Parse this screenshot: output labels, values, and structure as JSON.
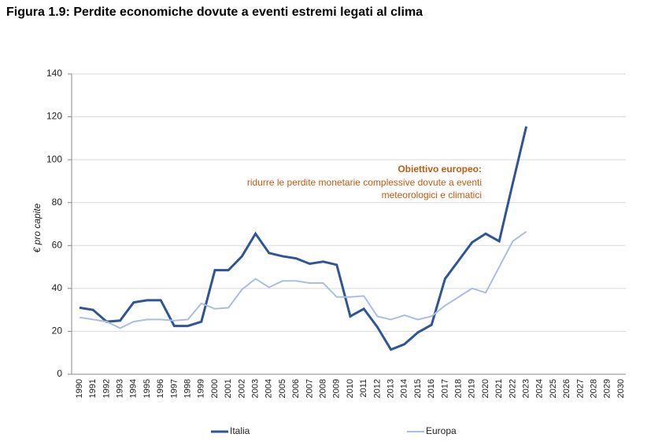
{
  "chart_data": {
    "type": "line",
    "title": "Figura 1.9: Perdite economiche dovute a eventi estremi legati al clima",
    "y_label": "€ pro capite",
    "categories": [
      "1990",
      "1991",
      "1992",
      "1993",
      "1994",
      "1995",
      "1996",
      "1997",
      "1998",
      "1999",
      "2000",
      "2001",
      "2002",
      "2003",
      "2004",
      "2005",
      "2006",
      "2007",
      "2008",
      "2009",
      "2010",
      "2011",
      "2012",
      "2013",
      "2014",
      "2015",
      "2016",
      "2017",
      "2018",
      "2019",
      "2020",
      "2021",
      "2022",
      "2023",
      "2024",
      "2025",
      "2026",
      "2027",
      "2028",
      "2029",
      "2030"
    ],
    "series": [
      {
        "name": "Italia",
        "color": "#2f5597",
        "values": [
          31,
          30,
          24.5,
          25,
          33.5,
          34.5,
          34.5,
          22.5,
          22.5,
          24.5,
          48.5,
          48.5,
          55,
          65.5,
          56.5,
          55,
          54,
          51.5,
          52.5,
          51,
          27,
          30.5,
          22,
          11.5,
          14,
          19.5,
          23,
          44.5,
          53,
          61.5,
          65.5,
          62,
          89,
          115.5,
          null,
          null,
          null,
          null,
          null,
          null,
          null
        ]
      },
      {
        "name": "Europa",
        "color": "#a9bde6",
        "values": [
          26.5,
          25.5,
          24.5,
          21.5,
          24.5,
          25.5,
          25.5,
          25,
          25.5,
          33,
          30.5,
          31,
          39.5,
          44.5,
          40.5,
          43.5,
          43.5,
          42.5,
          42.5,
          36,
          36,
          36.5,
          27,
          25.5,
          27.5,
          25.5,
          27,
          32,
          36,
          40,
          38,
          50,
          62,
          66.5,
          null,
          null,
          null,
          null,
          null,
          null,
          null
        ]
      }
    ],
    "ylim": [
      0,
      140
    ],
    "yticks": [
      0,
      20,
      40,
      60,
      80,
      100,
      120,
      140
    ],
    "grid": true,
    "annotation": {
      "title": "Obiettivo europeo:",
      "lines": [
        "ridurre le perdite monetarie complessive dovute a eventi",
        "meteorologici e climatici"
      ],
      "color": "#c55a11"
    }
  }
}
